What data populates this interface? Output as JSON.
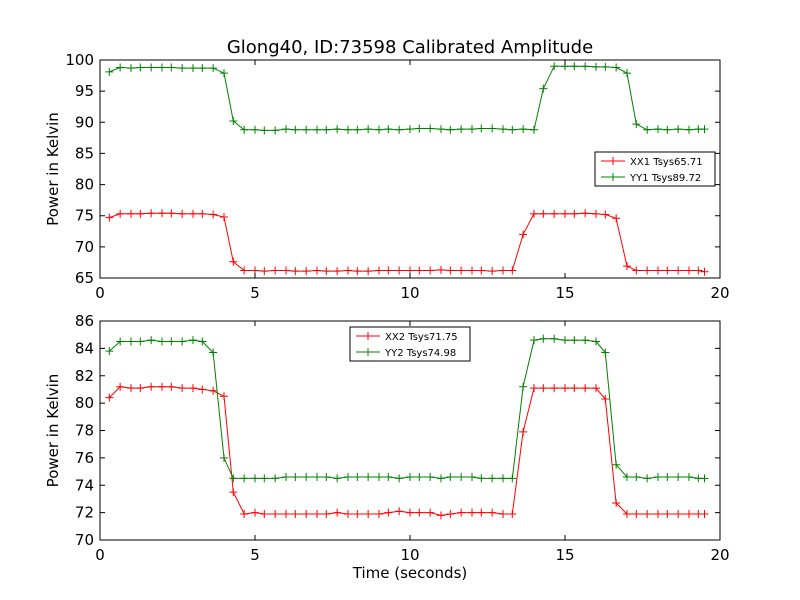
{
  "chart_data": [
    {
      "type": "line",
      "title": "Glong40, ID:73598 Calibrated Amplitude",
      "xlabel": "",
      "ylabel": "Power in Kelvin",
      "xlim": [
        0,
        20
      ],
      "ylim": [
        65,
        100
      ],
      "x_ticks": [
        "0",
        "5",
        "10",
        "15",
        "20"
      ],
      "y_ticks": [
        "65",
        "70",
        "75",
        "80",
        "85",
        "90",
        "95",
        "100"
      ],
      "legend_position": "center-right",
      "series": [
        {
          "name": "XX1 Tsys65.71",
          "color": "#ff0000",
          "x": [
            0.3,
            0.65,
            1.0,
            1.3,
            1.65,
            2.0,
            2.3,
            2.65,
            3.0,
            3.3,
            3.65,
            4.0,
            4.3,
            4.65,
            5.0,
            5.3,
            5.65,
            6.0,
            6.3,
            6.65,
            7.0,
            7.3,
            7.65,
            8.0,
            8.3,
            8.65,
            9.0,
            9.3,
            9.65,
            10.0,
            10.3,
            10.65,
            11.0,
            11.3,
            11.65,
            12.0,
            12.3,
            12.65,
            13.0,
            13.3,
            13.65,
            14.0,
            14.3,
            14.65,
            15.0,
            15.3,
            15.65,
            16.0,
            16.3,
            16.65,
            17.0,
            17.3,
            17.65,
            18.0,
            18.3,
            18.65,
            19.0,
            19.3,
            19.5
          ],
          "values": [
            74.7,
            75.3,
            75.3,
            75.3,
            75.4,
            75.4,
            75.4,
            75.3,
            75.3,
            75.3,
            75.2,
            74.8,
            67.6,
            66.2,
            66.2,
            66.1,
            66.2,
            66.2,
            66.1,
            66.1,
            66.2,
            66.1,
            66.1,
            66.2,
            66.1,
            66.1,
            66.2,
            66.2,
            66.2,
            66.2,
            66.2,
            66.2,
            66.3,
            66.2,
            66.2,
            66.2,
            66.2,
            66.1,
            66.2,
            66.2,
            72.0,
            75.3,
            75.3,
            75.3,
            75.3,
            75.3,
            75.4,
            75.3,
            75.2,
            74.6,
            66.9,
            66.2,
            66.2,
            66.2,
            66.2,
            66.2,
            66.2,
            66.2,
            66.0
          ]
        },
        {
          "name": "YY1 Tsys89.72",
          "color": "#008000",
          "x": [
            0.3,
            0.65,
            1.0,
            1.3,
            1.65,
            2.0,
            2.3,
            2.65,
            3.0,
            3.3,
            3.65,
            4.0,
            4.3,
            4.65,
            5.0,
            5.3,
            5.65,
            6.0,
            6.3,
            6.65,
            7.0,
            7.3,
            7.65,
            8.0,
            8.3,
            8.65,
            9.0,
            9.3,
            9.65,
            10.0,
            10.3,
            10.65,
            11.0,
            11.3,
            11.65,
            12.0,
            12.3,
            12.65,
            13.0,
            13.3,
            13.65,
            14.0,
            14.3,
            14.65,
            15.0,
            15.3,
            15.65,
            16.0,
            16.3,
            16.65,
            17.0,
            17.3,
            17.65,
            18.0,
            18.3,
            18.65,
            19.0,
            19.3,
            19.5
          ],
          "values": [
            98.1,
            98.8,
            98.7,
            98.8,
            98.8,
            98.8,
            98.8,
            98.7,
            98.7,
            98.7,
            98.7,
            97.9,
            90.2,
            88.8,
            88.8,
            88.7,
            88.7,
            88.9,
            88.8,
            88.8,
            88.8,
            88.8,
            88.9,
            88.8,
            88.8,
            88.9,
            88.8,
            88.9,
            88.8,
            88.9,
            89.0,
            89.0,
            88.9,
            88.8,
            88.9,
            88.9,
            89.0,
            89.0,
            88.9,
            88.8,
            88.9,
            88.8,
            95.4,
            99.0,
            99.0,
            99.0,
            99.0,
            98.9,
            98.9,
            98.8,
            97.9,
            89.7,
            88.8,
            88.9,
            88.8,
            88.9,
            88.8,
            88.9,
            88.9
          ]
        }
      ]
    },
    {
      "type": "line",
      "title": "",
      "xlabel": "Time (seconds)",
      "ylabel": "Power in Kelvin",
      "xlim": [
        0,
        20
      ],
      "ylim": [
        70,
        86
      ],
      "x_ticks": [
        "0",
        "5",
        "10",
        "15",
        "20"
      ],
      "y_ticks": [
        "70",
        "72",
        "74",
        "76",
        "78",
        "80",
        "82",
        "84",
        "86"
      ],
      "legend_position": "upper-center",
      "series": [
        {
          "name": "XX2 Tsys71.75",
          "color": "#ff0000",
          "x": [
            0.3,
            0.65,
            1.0,
            1.3,
            1.65,
            2.0,
            2.3,
            2.65,
            3.0,
            3.3,
            3.65,
            4.0,
            4.3,
            4.65,
            5.0,
            5.3,
            5.65,
            6.0,
            6.3,
            6.65,
            7.0,
            7.3,
            7.65,
            8.0,
            8.3,
            8.65,
            9.0,
            9.3,
            9.65,
            10.0,
            10.3,
            10.65,
            11.0,
            11.3,
            11.65,
            12.0,
            12.3,
            12.65,
            13.0,
            13.3,
            13.65,
            14.0,
            14.3,
            14.65,
            15.0,
            15.3,
            15.65,
            16.0,
            16.3,
            16.65,
            17.0,
            17.3,
            17.65,
            18.0,
            18.3,
            18.65,
            19.0,
            19.3,
            19.5
          ],
          "values": [
            80.4,
            81.2,
            81.1,
            81.1,
            81.2,
            81.2,
            81.2,
            81.1,
            81.1,
            81.0,
            80.9,
            80.5,
            73.5,
            71.9,
            72.0,
            71.9,
            71.9,
            71.9,
            71.9,
            71.9,
            71.9,
            71.9,
            72.0,
            71.9,
            71.9,
            71.9,
            71.9,
            72.0,
            72.1,
            72.0,
            72.0,
            72.0,
            71.8,
            71.9,
            72.0,
            72.0,
            72.0,
            72.0,
            71.9,
            71.9,
            77.9,
            81.1,
            81.1,
            81.1,
            81.1,
            81.1,
            81.1,
            81.1,
            80.3,
            72.7,
            71.9,
            71.9,
            71.9,
            71.9,
            71.9,
            71.9,
            71.9,
            71.9,
            71.9
          ]
        },
        {
          "name": "YY2 Tsys74.98",
          "color": "#008000",
          "x": [
            0.3,
            0.65,
            1.0,
            1.3,
            1.65,
            2.0,
            2.3,
            2.65,
            3.0,
            3.3,
            3.65,
            4.0,
            4.3,
            4.65,
            5.0,
            5.3,
            5.65,
            6.0,
            6.3,
            6.65,
            7.0,
            7.3,
            7.65,
            8.0,
            8.3,
            8.65,
            9.0,
            9.3,
            9.65,
            10.0,
            10.3,
            10.65,
            11.0,
            11.3,
            11.65,
            12.0,
            12.3,
            12.65,
            13.0,
            13.3,
            13.65,
            14.0,
            14.3,
            14.65,
            15.0,
            15.3,
            15.65,
            16.0,
            16.3,
            16.65,
            17.0,
            17.3,
            17.65,
            18.0,
            18.3,
            18.65,
            19.0,
            19.3,
            19.5
          ],
          "values": [
            83.8,
            84.5,
            84.5,
            84.5,
            84.6,
            84.5,
            84.5,
            84.5,
            84.6,
            84.5,
            83.7,
            76.0,
            74.5,
            74.5,
            74.5,
            74.5,
            74.5,
            74.6,
            74.6,
            74.6,
            74.6,
            74.6,
            74.5,
            74.6,
            74.6,
            74.6,
            74.6,
            74.6,
            74.5,
            74.6,
            74.6,
            74.6,
            74.5,
            74.6,
            74.6,
            74.6,
            74.5,
            74.5,
            74.5,
            74.5,
            81.2,
            84.6,
            84.7,
            84.7,
            84.6,
            84.6,
            84.6,
            84.5,
            83.7,
            75.5,
            74.6,
            74.6,
            74.5,
            74.6,
            74.6,
            74.6,
            74.6,
            74.5,
            74.5
          ]
        }
      ]
    }
  ]
}
